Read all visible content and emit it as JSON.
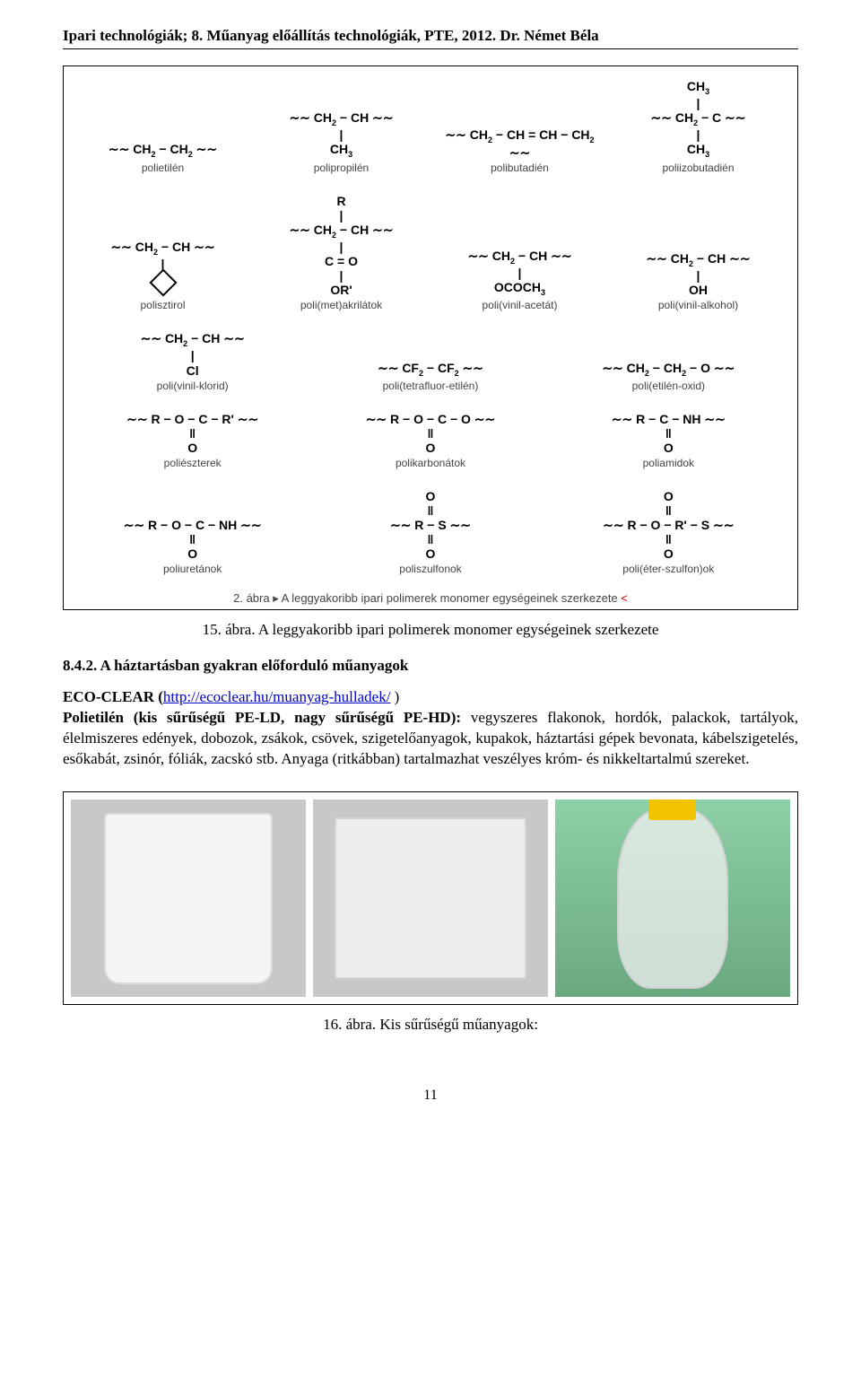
{
  "header": "Ipari technológiák; 8. Műanyag előállítás technológiák, PTE, 2012. Dr. Német Béla",
  "chem": {
    "rows": [
      [
        {
          "formula": "∼∼ CH₂ − CH₂ ∼∼",
          "label": "polietilén"
        },
        {
          "formula": "∼∼ CH₂ − CH ∼∼\n|\nCH₃",
          "label": "polipropilén"
        },
        {
          "formula": "∼∼ CH₂ − CH = CH − CH₂ ∼∼",
          "label": "polibutadién"
        },
        {
          "formula": "CH₃\n|\n∼∼ CH₂ − C ∼∼\n|\nCH₃",
          "label": "poliizobutadién"
        }
      ],
      [
        {
          "formula": "∼∼ CH₂ − CH ∼∼\n|\n⌬",
          "label": "polisztirol"
        },
        {
          "formula": "R\n|\n∼∼ CH₂ − CH ∼∼\n|\nC = O\n|\nOR'",
          "label": "poli(met)akrilátok"
        },
        {
          "formula": "∼∼ CH₂ − CH ∼∼\n|\nOCOCH₃",
          "label": "poli(vinil-acetát)"
        },
        {
          "formula": "∼∼ CH₂ − CH ∼∼\n|\nOH",
          "label": "poli(vinil-alkohol)"
        }
      ],
      [
        {
          "formula": "∼∼ CH₂ − CH ∼∼\n|\nCl",
          "label": "poli(vinil-klorid)"
        },
        {
          "formula": "∼∼ CF₂ − CF₂ ∼∼",
          "label": "poli(tetrafluor-etilén)"
        },
        {
          "formula": "∼∼ CH₂ − CH₂ − O ∼∼",
          "label": "poli(etilén-oxid)"
        }
      ],
      [
        {
          "formula": "∼∼ R − O − C − R' ∼∼\n‖\nO",
          "label": "poliészterek"
        },
        {
          "formula": "∼∼ R − O − C − O ∼∼\n‖\nO",
          "label": "polikarbonátok"
        },
        {
          "formula": "∼∼ R − C − NH ∼∼\n‖\nO",
          "label": "poliamidok"
        }
      ],
      [
        {
          "formula": "∼∼ R − O − C − NH ∼∼\n‖\nO",
          "label": "poliuretánok"
        },
        {
          "formula": "O\n‖\n∼∼ R − S ∼∼\n‖\nO",
          "label": "poliszulfonok"
        },
        {
          "formula": "O\n‖\n∼∼ R − O − R' − S ∼∼\n‖\nO",
          "label": "poli(éter-szulfon)ok"
        }
      ]
    ],
    "internal_caption_prefix": "2. ábra ▸ A leggyakoribb ipari polimerek monomer egységeinek szerkezete ",
    "internal_caption_marker": "<"
  },
  "caption15": "15. ábra. A leggyakoribb ipari polimerek monomer egységeinek szerkezete",
  "section_num": "8.4.2. A háztartásban gyakran előforduló műanyagok",
  "eco": {
    "label": "ECO-CLEAR (",
    "url_text": "http://ecoclear.hu/muanyag-hulladek/",
    "closing": " )"
  },
  "paragraph": "Polietilén (kis sűrűségű PE-LD, nagy sűrűségű PE-HD): vegyszeres flakonok, hordók, palackok, tartályok, élelmiszeres edények, dobozok, zsákok, csövek, szigetelőanyagok, kupakok, háztartási gépek bevonata, kábelszigetelés, esőkabát, zsinór, fóliák, zacskó stb. Anyaga (ritkábban) tartalmazhat veszélyes króm- és nikkeltartalmú szereket.",
  "caption16": "16. ábra. Kis sűrűségű műanyagok:",
  "page_number": "11",
  "colors": {
    "text": "#000000",
    "link": "#0000cc",
    "red_marker": "#cc0000",
    "label_gray": "#444444"
  }
}
